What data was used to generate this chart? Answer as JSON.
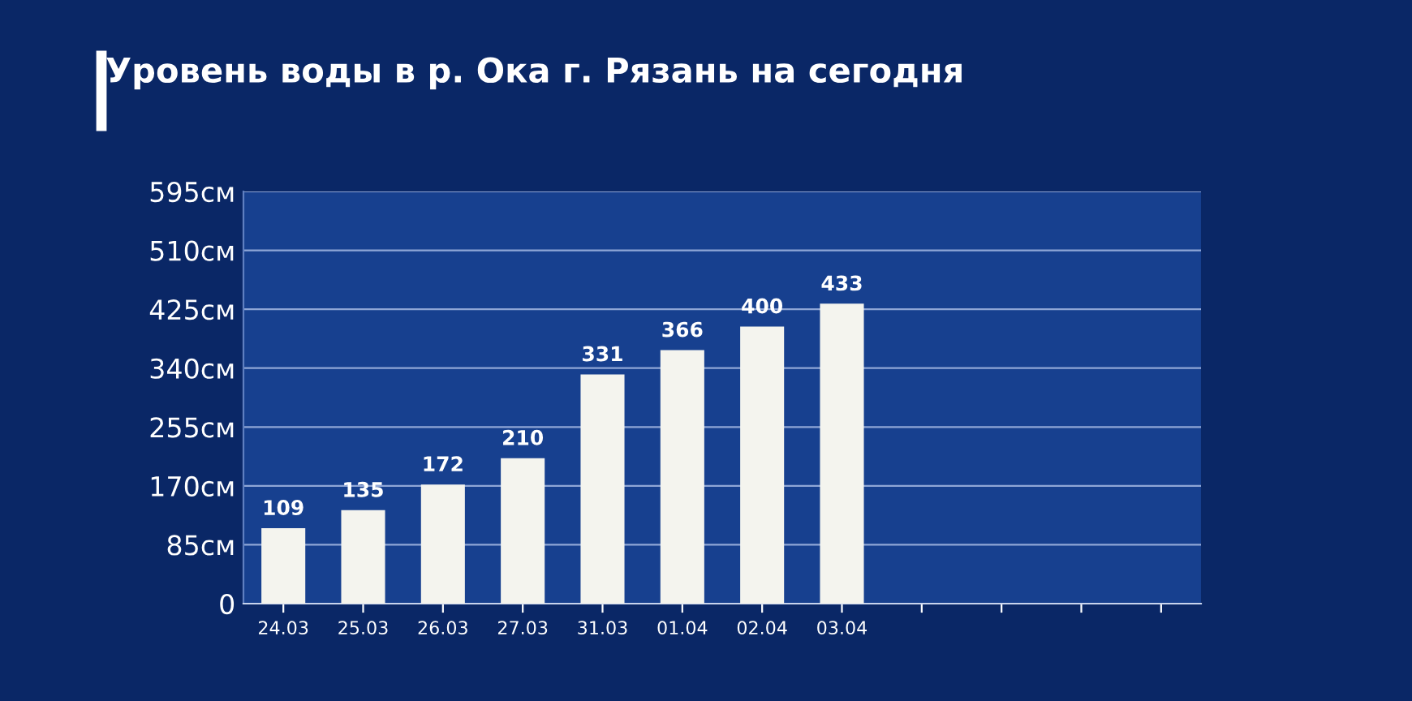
{
  "chart_data": {
    "type": "bar",
    "title": "Уровень воды в р. Ока г. Рязань на сегодня",
    "categories": [
      "24.03",
      "25.03",
      "26.03",
      "27.03",
      "31.03",
      "01.04",
      "02.04",
      "03.04",
      null,
      null,
      null,
      null
    ],
    "values": [
      109,
      135,
      172,
      210,
      331,
      366,
      400,
      433,
      null,
      null,
      null,
      null
    ],
    "color": "#f4f4ee",
    "ylim": [
      0,
      595
    ],
    "yticks": [
      0,
      {
        "value": 85,
        "label": "85см"
      },
      {
        "value": 170,
        "label": "170см"
      },
      {
        "value": 255,
        "label": "255см"
      },
      {
        "value": 340,
        "label": "340см"
      },
      {
        "value": 425,
        "label": "425см"
      },
      {
        "value": 510,
        "label": "510см"
      },
      {
        "value": 595,
        "label": "595см"
      }
    ],
    "grid": "y",
    "data_labels": true
  }
}
